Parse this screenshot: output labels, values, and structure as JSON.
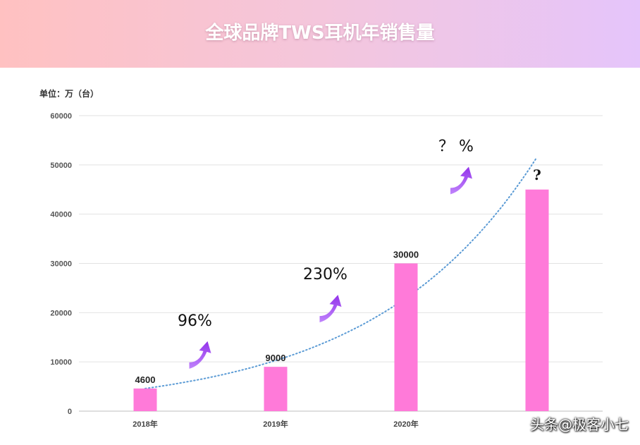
{
  "header": {
    "title": "全球品牌TWS耳机年销售量",
    "gradient": [
      "#ffc1c1",
      "#e5c5fb"
    ]
  },
  "unit_label": "单位：万（台）",
  "watermark": "头条@极客小七",
  "chart_data": {
    "type": "bar",
    "categories": [
      "2018年",
      "2019年",
      "2020年",
      ""
    ],
    "values": [
      4600,
      9000,
      30000,
      45000
    ],
    "data_labels": [
      "4600",
      "9000",
      "30000",
      "?"
    ],
    "ylim": [
      0,
      60000
    ],
    "yticks": [
      "0",
      "10000",
      "20000",
      "30000",
      "40000",
      "50000",
      "60000"
    ],
    "grid": true,
    "bar_color": "#ff7ad9",
    "trendline": {
      "style": "dotted",
      "color": "#5b9bd5",
      "type": "exponential"
    },
    "growth_annotations": [
      {
        "label": "96%",
        "between": [
          0,
          1
        ]
      },
      {
        "label": "230%",
        "between": [
          1,
          2
        ]
      },
      {
        "label": "？ %",
        "between": [
          2,
          3
        ]
      }
    ],
    "arrow_color": "#a855f7"
  }
}
